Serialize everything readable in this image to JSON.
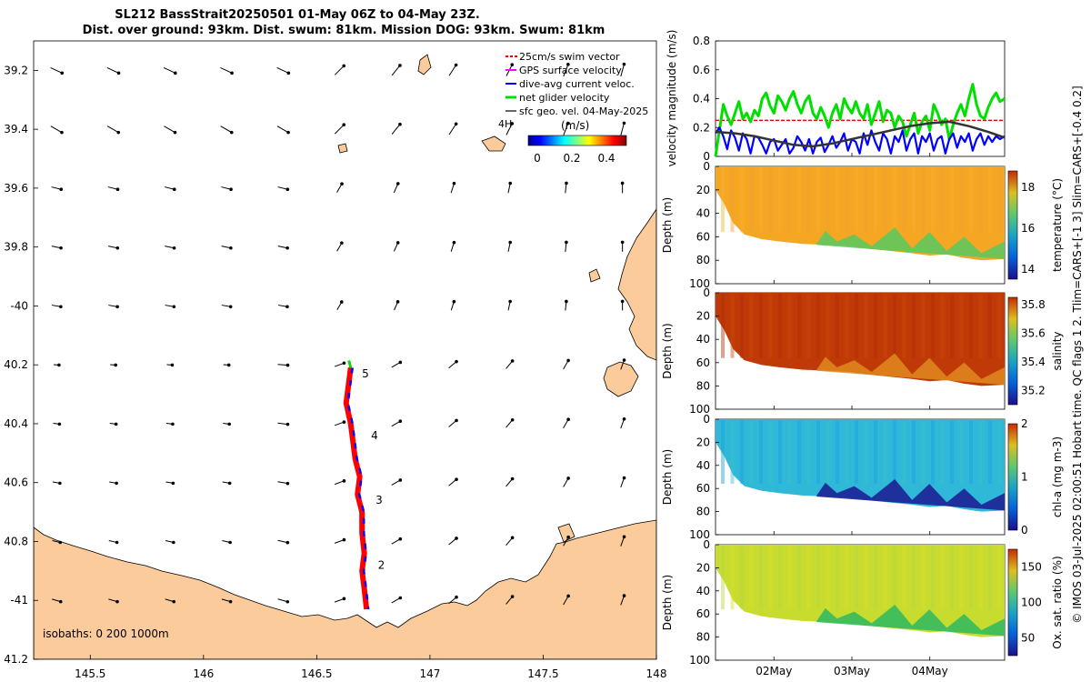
{
  "title_line1": "SL212 BassStrait20250501 01-May 06Z to 04-May 23Z.",
  "title_line2": "Dist. over ground: 93km. Dist. swum: 81km. Mission DOG: 93km. Swum: 81km",
  "side_note": "© IMOS 03-Jul-2025 02:00:51 Hobart time. QC flags 1  2. Tlim=CARS+[-1 3] Slim=CARS+[-0.4 0.2]",
  "colors": {
    "land": "#fbcb9c",
    "track": "#ff0000",
    "dive_avg": "#0000ff",
    "net": "#00e000",
    "swim": "#ff0000",
    "gps": "#ff00ff",
    "smooth": "#333333"
  },
  "chart_data": [
    {
      "type": "scatter",
      "id": "map",
      "title": "SL212 BassStrait20250501 01-May 06Z to 04-May 23Z.",
      "xlim": [
        145.25,
        148
      ],
      "ylim": [
        -41.2,
        -39.1
      ],
      "x_ticks": [
        145.5,
        146,
        146.5,
        147,
        147.5,
        148
      ],
      "x_tick_labels": [
        "145.5",
        "146",
        "146.5",
        "147",
        "147.5",
        "148"
      ],
      "y_ticks": [
        -39.2,
        -39.4,
        -39.6,
        -39.8,
        -40,
        -40.2,
        -40.4,
        -40.6,
        -40.8,
        -41,
        -41.2
      ],
      "y_tick_labels": [
        "39.2",
        "39.4",
        "39.6",
        "39.8",
        "-40",
        "40.2",
        "40.4",
        "40.6",
        "40.8",
        "-41",
        "41.2"
      ],
      "legend": [
        {
          "label": "25cm/s swim vector",
          "color": "#ff0000"
        },
        {
          "label": "GPS surface velocity",
          "color": "#ff00ff"
        },
        {
          "label": "dive-avg current veloc.",
          "color": "#0000ff"
        },
        {
          "label": "net glider velocity",
          "color": "#00e000"
        },
        {
          "label": "sfc geo. vel. 04-May-2025",
          "color": "#000000"
        }
      ],
      "legend_extra": "4H",
      "colorbar": {
        "label": "(m/s)",
        "ticks": [
          "0",
          "0.2",
          "0.4"
        ],
        "range": [
          0,
          0.5
        ]
      },
      "isobaths_label": "isobaths: 0   200  1000m",
      "track": [
        {
          "lon": 146.65,
          "lat": -40.21
        },
        {
          "lon": 146.64,
          "lat": -40.27
        },
        {
          "lon": 146.63,
          "lat": -40.33
        },
        {
          "lon": 146.65,
          "lat": -40.4
        },
        {
          "lon": 146.66,
          "lat": -40.46
        },
        {
          "lon": 146.67,
          "lat": -40.52
        },
        {
          "lon": 146.69,
          "lat": -40.58
        },
        {
          "lon": 146.68,
          "lat": -40.64
        },
        {
          "lon": 146.7,
          "lat": -40.7
        },
        {
          "lon": 146.7,
          "lat": -40.77
        },
        {
          "lon": 146.71,
          "lat": -40.84
        },
        {
          "lon": 146.7,
          "lat": -40.9
        },
        {
          "lon": 146.71,
          "lat": -40.96
        },
        {
          "lon": 146.72,
          "lat": -41.03
        }
      ],
      "day_markers": [
        {
          "label": "2",
          "lon": 146.77,
          "lat": -40.88
        },
        {
          "label": "3",
          "lon": 146.76,
          "lat": -40.66
        },
        {
          "label": "4",
          "lon": 146.74,
          "lat": -40.44
        },
        {
          "label": "5",
          "lon": 146.7,
          "lat": -40.23
        }
      ],
      "current_field": {
        "lons": [
          145.35,
          145.6,
          145.85,
          146.1,
          146.35,
          146.6,
          146.85,
          147.1,
          147.35,
          147.6,
          147.85
        ],
        "lats": [
          -39.2,
          -39.4,
          -39.6,
          -39.8,
          -40.0,
          -40.2,
          -40.4,
          -40.6,
          -40.8,
          -41.0
        ]
      }
    },
    {
      "type": "line",
      "id": "velocity",
      "ylabel": "velocity magnitude (m/s)",
      "ylim": [
        0,
        0.8
      ],
      "y_ticks": [
        0,
        0.2,
        0.4,
        0.6,
        0.8
      ],
      "y_tick_labels": [
        "0",
        "0.2",
        "0.4",
        "0.6",
        "0.8"
      ],
      "x_range_days": [
        1.25,
        4.96
      ],
      "x_ticks": [
        2,
        3,
        4
      ],
      "x_tick_labels": [
        "02May",
        "03May",
        "04May"
      ],
      "series": [
        {
          "name": "25cm/s swim vector",
          "color": "#ff0000",
          "t": [
            1.25,
            4.96
          ],
          "values": [
            0.25,
            0.25
          ]
        },
        {
          "name": "net glider velocity",
          "color": "#00e000",
          "t": [
            1.25,
            1.3,
            1.35,
            1.4,
            1.45,
            1.5,
            1.55,
            1.6,
            1.65,
            1.7,
            1.75,
            1.8,
            1.85,
            1.9,
            1.95,
            2.0,
            2.05,
            2.1,
            2.15,
            2.2,
            2.25,
            2.3,
            2.35,
            2.4,
            2.45,
            2.5,
            2.55,
            2.6,
            2.65,
            2.7,
            2.75,
            2.8,
            2.85,
            2.9,
            2.95,
            3.0,
            3.05,
            3.1,
            3.15,
            3.2,
            3.25,
            3.3,
            3.35,
            3.4,
            3.45,
            3.5,
            3.55,
            3.6,
            3.65,
            3.7,
            3.75,
            3.8,
            3.85,
            3.9,
            3.95,
            4.0,
            4.05,
            4.1,
            4.15,
            4.2,
            4.25,
            4.3,
            4.35,
            4.4,
            4.45,
            4.5,
            4.55,
            4.6,
            4.65,
            4.7,
            4.75,
            4.8,
            4.85,
            4.9,
            4.96
          ],
          "values": [
            0.0,
            0.18,
            0.36,
            0.28,
            0.22,
            0.3,
            0.38,
            0.26,
            0.3,
            0.24,
            0.32,
            0.28,
            0.4,
            0.44,
            0.35,
            0.3,
            0.42,
            0.38,
            0.32,
            0.4,
            0.45,
            0.36,
            0.3,
            0.38,
            0.42,
            0.3,
            0.26,
            0.34,
            0.28,
            0.2,
            0.3,
            0.36,
            0.26,
            0.4,
            0.34,
            0.3,
            0.38,
            0.3,
            0.26,
            0.36,
            0.22,
            0.3,
            0.38,
            0.24,
            0.32,
            0.3,
            0.2,
            0.28,
            0.24,
            0.14,
            0.22,
            0.3,
            0.16,
            0.24,
            0.28,
            0.18,
            0.36,
            0.3,
            0.22,
            0.26,
            0.12,
            0.22,
            0.3,
            0.36,
            0.28,
            0.4,
            0.5,
            0.36,
            0.28,
            0.26,
            0.34,
            0.4,
            0.44,
            0.38,
            0.4
          ]
        },
        {
          "name": "dive-avg current veloc.",
          "color": "#0000ff",
          "t": [
            1.25,
            1.3,
            1.35,
            1.4,
            1.45,
            1.5,
            1.55,
            1.6,
            1.65,
            1.7,
            1.75,
            1.8,
            1.85,
            1.9,
            1.95,
            2.0,
            2.05,
            2.1,
            2.15,
            2.2,
            2.25,
            2.3,
            2.35,
            2.4,
            2.45,
            2.5,
            2.55,
            2.6,
            2.65,
            2.7,
            2.75,
            2.8,
            2.85,
            2.9,
            2.95,
            3.0,
            3.05,
            3.1,
            3.15,
            3.2,
            3.25,
            3.3,
            3.35,
            3.4,
            3.45,
            3.5,
            3.55,
            3.6,
            3.65,
            3.7,
            3.75,
            3.8,
            3.85,
            3.9,
            3.95,
            4.0,
            4.05,
            4.1,
            4.15,
            4.2,
            4.25,
            4.3,
            4.35,
            4.4,
            4.45,
            4.5,
            4.55,
            4.6,
            4.65,
            4.7,
            4.75,
            4.8,
            4.85,
            4.9,
            4.96
          ],
          "values": [
            0.16,
            0.2,
            0.14,
            0.05,
            0.18,
            0.13,
            0.04,
            0.16,
            0.12,
            0.02,
            0.14,
            0.13,
            0.08,
            0.02,
            0.1,
            0.12,
            0.04,
            0.08,
            0.12,
            0.02,
            0.06,
            0.14,
            0.1,
            0.04,
            0.12,
            0.02,
            0.1,
            0.13,
            0.03,
            0.08,
            0.14,
            0.06,
            0.1,
            0.16,
            0.04,
            0.12,
            0.1,
            0.02,
            0.16,
            0.08,
            0.18,
            0.1,
            0.04,
            0.16,
            0.12,
            0.02,
            0.14,
            0.1,
            0.18,
            0.04,
            0.12,
            0.16,
            0.02,
            0.14,
            0.1,
            0.16,
            0.04,
            0.12,
            0.14,
            0.02,
            0.12,
            0.16,
            0.06,
            0.14,
            0.1,
            0.16,
            0.04,
            0.12,
            0.16,
            0.08,
            0.14,
            0.1,
            0.14,
            0.12,
            0.14
          ]
        },
        {
          "name": "smoothed dive-avg",
          "color": "#333333",
          "t": [
            1.25,
            1.5,
            1.75,
            2.0,
            2.25,
            2.5,
            2.75,
            3.0,
            3.25,
            3.5,
            3.75,
            4.0,
            4.25,
            4.5,
            4.75,
            4.96
          ],
          "values": [
            0.17,
            0.16,
            0.14,
            0.11,
            0.08,
            0.07,
            0.09,
            0.12,
            0.15,
            0.18,
            0.21,
            0.23,
            0.24,
            0.21,
            0.17,
            0.13
          ]
        }
      ]
    },
    {
      "type": "heatmap",
      "id": "temperature",
      "ylabel": "Depth (m)",
      "clabel": "temperature (°C)",
      "clim": [
        13.5,
        18.8
      ],
      "c_ticks": [
        "14",
        "16",
        "18"
      ],
      "y_ticks": [
        "0",
        "20",
        "40",
        "60",
        "80",
        "100"
      ],
      "ylim": [
        100,
        0
      ]
    },
    {
      "type": "heatmap",
      "id": "salinity",
      "ylabel": "Depth (m)",
      "clabel": "salinity",
      "clim": [
        35.1,
        35.85
      ],
      "c_ticks": [
        "35.2",
        "35.4",
        "35.6",
        "35.8"
      ],
      "y_ticks": [
        "0",
        "20",
        "40",
        "60",
        "80",
        "100"
      ],
      "ylim": [
        100,
        0
      ]
    },
    {
      "type": "heatmap",
      "id": "chla",
      "ylabel": "Depth (m)",
      "clabel": "chl-a (mg m-3)",
      "clim": [
        0,
        2
      ],
      "c_ticks": [
        "0",
        "1",
        "2"
      ],
      "y_ticks": [
        "0",
        "20",
        "40",
        "60",
        "80",
        "100"
      ],
      "ylim": [
        100,
        0
      ]
    },
    {
      "type": "heatmap",
      "id": "oxygen",
      "ylabel": "Depth (m)",
      "clabel": "Ox. sat. ratio (%)",
      "clim": [
        25,
        175
      ],
      "c_ticks": [
        "50",
        "100",
        "150"
      ],
      "y_ticks": [
        "0",
        "20",
        "40",
        "60",
        "80",
        "100"
      ],
      "ylim": [
        100,
        0
      ],
      "x_ticks": [
        2,
        3,
        4
      ],
      "x_tick_labels": [
        "02May",
        "03May",
        "04May"
      ]
    }
  ]
}
